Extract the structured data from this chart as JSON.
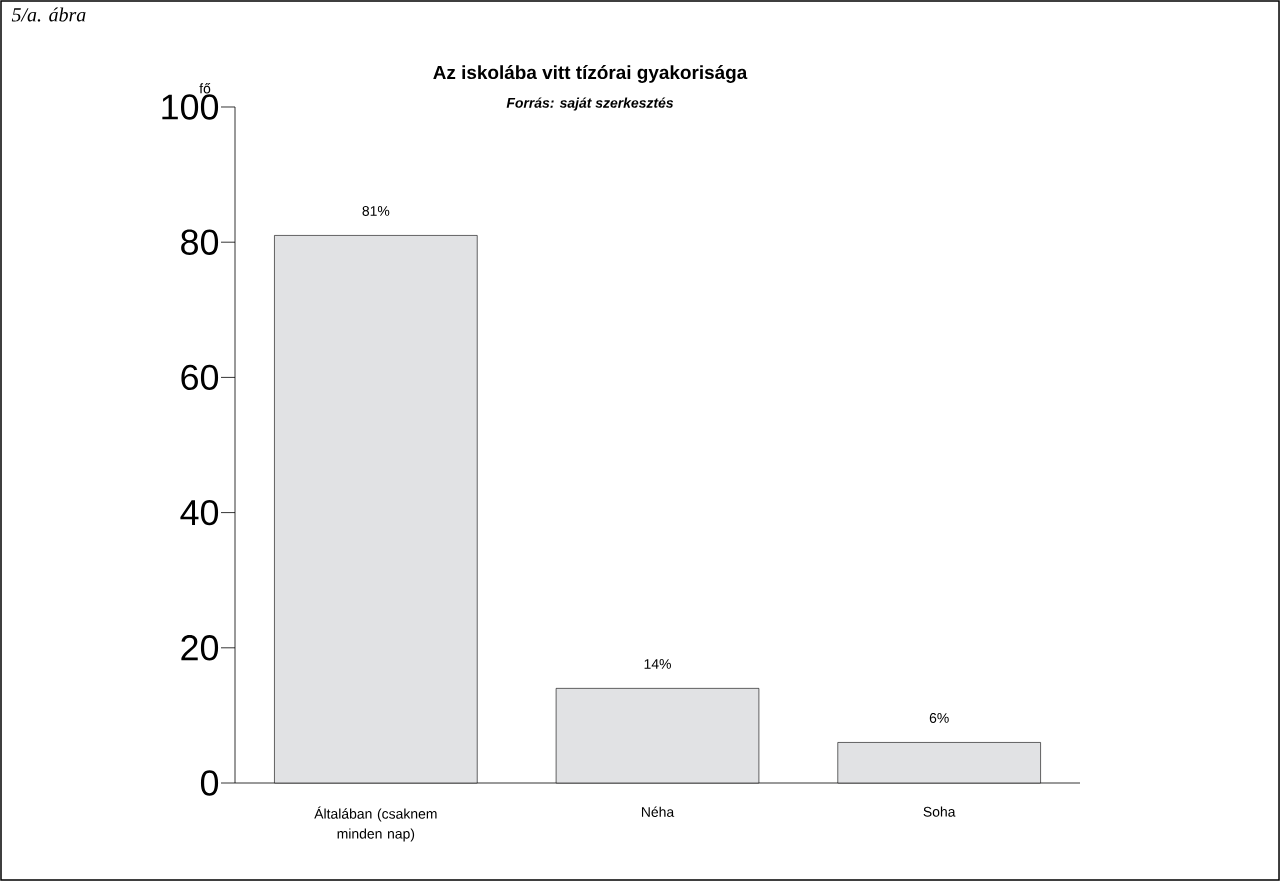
{
  "chart_data": {
    "type": "bar",
    "title": "Az iskolába vitt tízórai gyakorisága",
    "subtitle": "Forrás: saját szerkesztés",
    "ylabel": "fő",
    "annotations": [
      "5/a. ábra"
    ],
    "categories": [
      "Általában (csaknem minden nap)",
      "Néha",
      "Soha"
    ],
    "values": [
      81,
      14,
      6
    ],
    "value_labels": [
      "81%",
      "14%",
      "6%"
    ],
    "color": "#e1e2e4",
    "ylim": [
      0,
      100
    ],
    "yticks": [
      0,
      20,
      40,
      60,
      80,
      100
    ]
  }
}
